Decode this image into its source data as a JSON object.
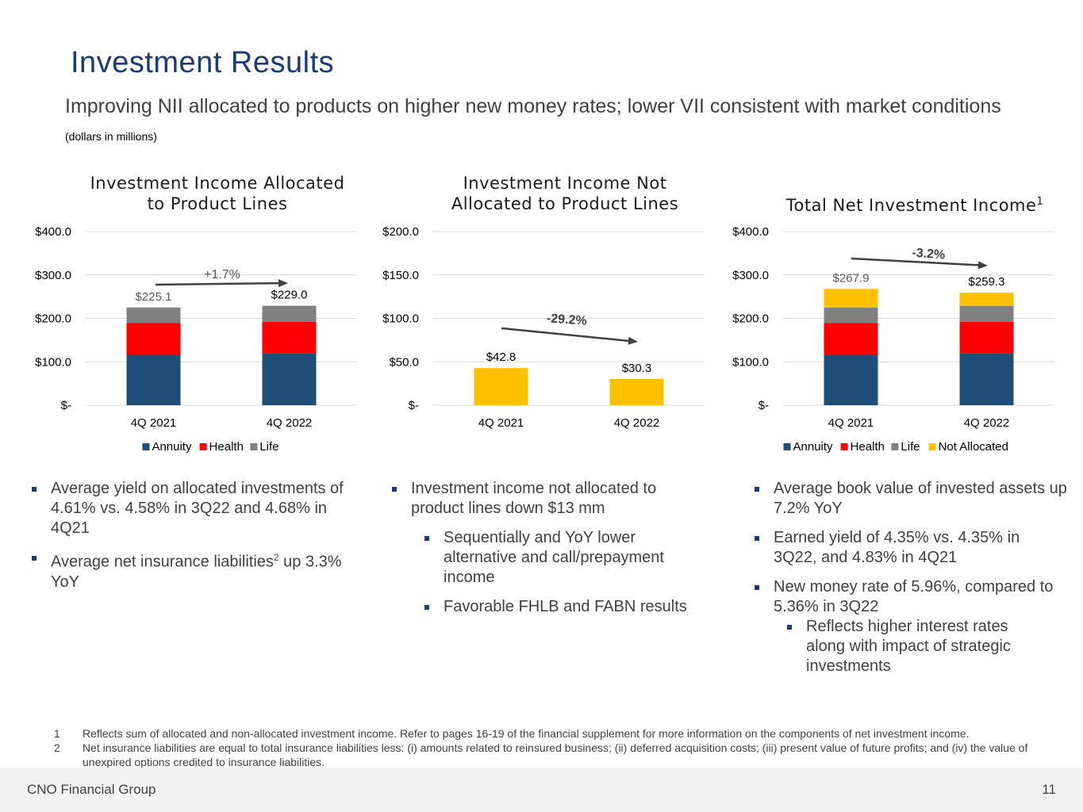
{
  "header": {
    "title": "Investment Results",
    "subtitle": "Improving NII allocated to products on higher new money rates; lower VII consistent with market conditions",
    "units": "(dollars in millions)"
  },
  "colors": {
    "annuity": "#1f4e79",
    "health": "#ff0000",
    "life": "#808080",
    "not_allocated": "#ffc000",
    "title_blue": "#1a3a7a"
  },
  "chart_data": [
    {
      "type": "bar",
      "stacked": true,
      "title_lines": [
        "Investment Income Allocated",
        "to Product Lines"
      ],
      "title_sup": "",
      "categories": [
        "4Q 2021",
        "4Q 2022"
      ],
      "series": [
        {
          "name": "Annuity",
          "values": [
            116,
            120
          ]
        },
        {
          "name": "Health",
          "values": [
            73,
            72
          ]
        },
        {
          "name": "Life",
          "values": [
            36.1,
            37.0
          ]
        }
      ],
      "totals": [
        "$225.1",
        "$229.0"
      ],
      "yticks": [
        "$-",
        "$100.0",
        "$200.0",
        "$300.0",
        "$400.0"
      ],
      "ylim": [
        0,
        400
      ],
      "annotation": "+1.7%",
      "legend": [
        "Annuity",
        "Health",
        "Life"
      ]
    },
    {
      "type": "bar",
      "stacked": false,
      "title_lines": [
        "Investment Income Not",
        "Allocated to Product Lines"
      ],
      "title_sup": "",
      "categories": [
        "4Q 2021",
        "4Q 2022"
      ],
      "series": [
        {
          "name": "Not Allocated",
          "values": [
            42.8,
            30.3
          ]
        }
      ],
      "totals": [
        "$42.8",
        "$30.3"
      ],
      "yticks": [
        "$-",
        "$50.0",
        "$100.0",
        "$150.0",
        "$200.0"
      ],
      "ylim": [
        0,
        200
      ],
      "annotation": "-29.2%",
      "legend": []
    },
    {
      "type": "bar",
      "stacked": true,
      "title_lines": [
        "Total Net Investment Income"
      ],
      "title_sup": "1",
      "categories": [
        "4Q 2021",
        "4Q 2022"
      ],
      "series": [
        {
          "name": "Annuity",
          "values": [
            116,
            120
          ]
        },
        {
          "name": "Health",
          "values": [
            73,
            72
          ]
        },
        {
          "name": "Life",
          "values": [
            36.1,
            37.0
          ]
        },
        {
          "name": "Not Allocated",
          "values": [
            42.8,
            30.3
          ]
        }
      ],
      "totals": [
        "$267.9",
        "$259.3"
      ],
      "yticks": [
        "$-",
        "$100.0",
        "$200.0",
        "$300.0",
        "$400.0"
      ],
      "ylim": [
        0,
        400
      ],
      "annotation": "-3.2%",
      "legend": [
        "Annuity",
        "Health",
        "Life",
        "Not Allocated"
      ]
    }
  ],
  "bullets": {
    "col1": {
      "b1": "Average yield on allocated investments of 4.61% vs. 4.58% in 3Q22 and 4.68% in 4Q21",
      "b2_pre": "Average net insurance liabilities",
      "b2_sup": "2",
      "b2_post": " up 3.3% YoY"
    },
    "col2": {
      "b1": "Investment income not allocated to product lines down $13 mm",
      "b2": "Sequentially and YoY lower alternative and call/prepayment income",
      "b3": "Favorable FHLB and FABN results"
    },
    "col3": {
      "b1": "Average book value of invested assets up 7.2% YoY",
      "b2": "Earned yield of 4.35% vs. 4.35% in 3Q22, and 4.83% in 4Q21",
      "b3": "New money rate of 5.96%, compared to 5.36% in 3Q22",
      "b4": "Reflects higher interest rates along with impact of strategic investments"
    }
  },
  "footnotes": [
    {
      "num": "1",
      "text": "Reflects sum of allocated and non-allocated investment income. Refer to pages 16-19 of the financial supplement for more information on the components of net investment income."
    },
    {
      "num": "2",
      "text": "Net insurance liabilities are equal to total insurance liabilities less: (i) amounts related to reinsured business; (ii) deferred acquisition costs; (iii) present value of future profits; and (iv) the value of unexpired options credited to insurance liabilities."
    }
  ],
  "footer": {
    "company": "CNO Financial Group",
    "page": "11"
  }
}
